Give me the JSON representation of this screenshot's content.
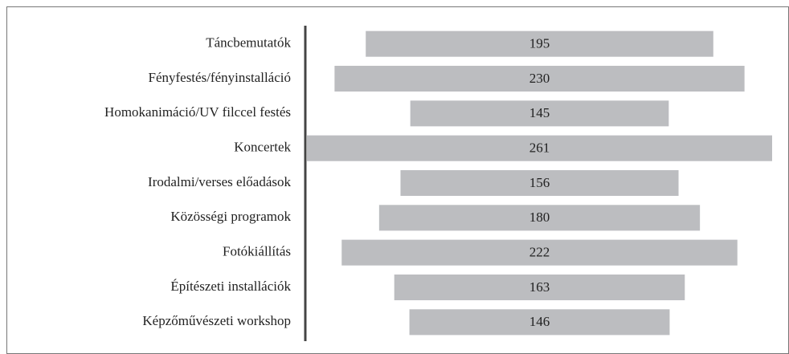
{
  "chart_data": {
    "type": "bar",
    "categories": [
      "Táncbemutatók",
      "Fényfestés/fényinstalláció",
      "Homokanimáció/UV filccel festés",
      "Koncertek",
      "Irodalmi/verses előadások",
      "Közösségi programok",
      "Fotókiállítás",
      "Építészeti installációk",
      "Képzőművészeti workshop"
    ],
    "values": [
      195,
      230,
      145,
      261,
      156,
      180,
      222,
      163,
      146
    ],
    "color": "#bcbdc0"
  }
}
